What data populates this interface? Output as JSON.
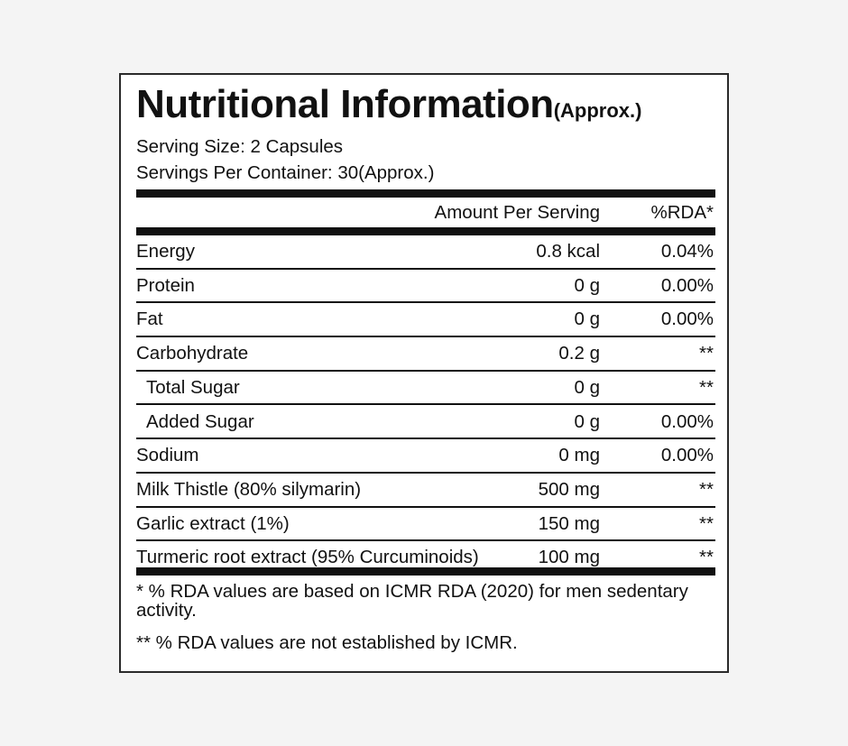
{
  "title": {
    "main": "Nutritional Information",
    "suffix": "(Approx.)"
  },
  "serving_size": "Serving Size: 2 Capsules",
  "servings_per_container": "Servings Per Container: 30(Approx.)",
  "header": {
    "amount": "Amount Per Serving",
    "rda": "%RDA*"
  },
  "rows": [
    {
      "name": "Energy",
      "amount": "0.8 kcal",
      "rda": "0.04%"
    },
    {
      "name": "Protein",
      "amount": "0 g",
      "rda": "0.00%"
    },
    {
      "name": "Fat",
      "amount": "0 g",
      "rda": "0.00%"
    },
    {
      "name": "Carbohydrate",
      "amount": "0.2 g",
      "rda": "**"
    },
    {
      "name": "Total Sugar",
      "amount": "0 g",
      "rda": "**",
      "indent": true
    },
    {
      "name": "Added Sugar",
      "amount": "0 g",
      "rda": "0.00%",
      "indent": true
    },
    {
      "name": "Sodium",
      "amount": "0 mg",
      "rda": "0.00%"
    },
    {
      "name": "Milk Thistle (80% silymarin)",
      "amount": "500 mg",
      "rda": "**"
    },
    {
      "name": "Garlic extract (1%)",
      "amount": "150 mg",
      "rda": "**"
    },
    {
      "name": "Turmeric root extract (95% Curcuminoids)",
      "amount": "100 mg",
      "rda": "**"
    }
  ],
  "footnotes": [
    "* % RDA values are based on ICMR RDA (2020) for men sedentary activity.",
    "** % RDA values are not established by ICMR."
  ]
}
